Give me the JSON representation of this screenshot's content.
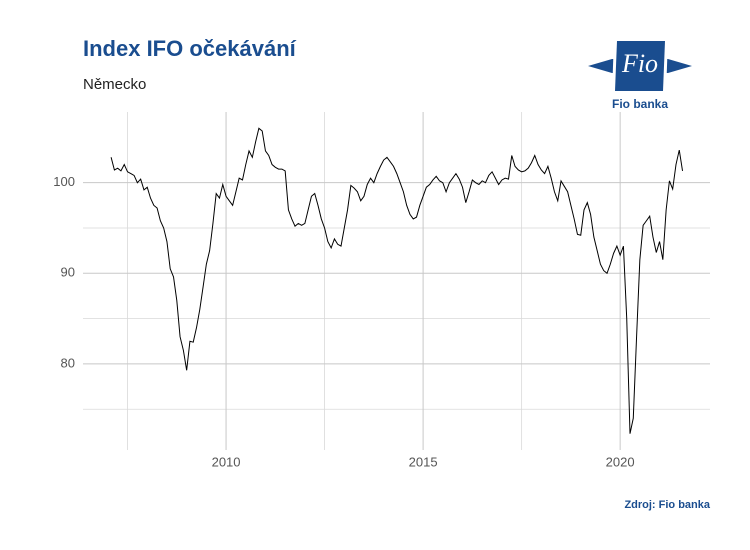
{
  "chart_data": {
    "type": "line",
    "title": "Index IFO očekávání",
    "subtitle": "Německo",
    "source": "Zdroj: Fio banka",
    "logo": {
      "text": "Fio",
      "caption": "Fio banka"
    },
    "xlim": [
      2006.37,
      2022.28
    ],
    "ylim": [
      70.5,
      107.8
    ],
    "xticks": [
      2010,
      2015,
      2020
    ],
    "yticks": [
      80,
      90,
      100
    ],
    "x_minor_ticks": [
      2007.5,
      2012.5,
      2017.5
    ],
    "y_minor_ticks": [
      75,
      85,
      95
    ],
    "grid": true,
    "x": [
      2007.083,
      2007.167,
      2007.25,
      2007.333,
      2007.417,
      2007.5,
      2007.583,
      2007.667,
      2007.75,
      2007.833,
      2007.917,
      2008,
      2008.083,
      2008.167,
      2008.25,
      2008.333,
      2008.417,
      2008.5,
      2008.583,
      2008.667,
      2008.75,
      2008.833,
      2008.917,
      2009,
      2009.083,
      2009.167,
      2009.25,
      2009.333,
      2009.417,
      2009.5,
      2009.583,
      2009.667,
      2009.75,
      2009.833,
      2009.917,
      2010,
      2010.083,
      2010.167,
      2010.25,
      2010.333,
      2010.417,
      2010.5,
      2010.583,
      2010.667,
      2010.75,
      2010.833,
      2010.917,
      2011,
      2011.083,
      2011.167,
      2011.25,
      2011.333,
      2011.417,
      2011.5,
      2011.583,
      2011.667,
      2011.75,
      2011.833,
      2011.917,
      2012,
      2012.083,
      2012.167,
      2012.25,
      2012.333,
      2012.417,
      2012.5,
      2012.583,
      2012.667,
      2012.75,
      2012.833,
      2012.917,
      2013,
      2013.083,
      2013.167,
      2013.25,
      2013.333,
      2013.417,
      2013.5,
      2013.583,
      2013.667,
      2013.75,
      2013.833,
      2013.917,
      2014,
      2014.083,
      2014.167,
      2014.25,
      2014.333,
      2014.417,
      2014.5,
      2014.583,
      2014.667,
      2014.75,
      2014.833,
      2014.917,
      2015,
      2015.083,
      2015.167,
      2015.25,
      2015.333,
      2015.417,
      2015.5,
      2015.583,
      2015.667,
      2015.75,
      2015.833,
      2015.917,
      2016,
      2016.083,
      2016.167,
      2016.25,
      2016.333,
      2016.417,
      2016.5,
      2016.583,
      2016.667,
      2016.75,
      2016.833,
      2016.917,
      2017,
      2017.083,
      2017.167,
      2017.25,
      2017.333,
      2017.417,
      2017.5,
      2017.583,
      2017.667,
      2017.75,
      2017.833,
      2017.917,
      2018,
      2018.083,
      2018.167,
      2018.25,
      2018.333,
      2018.417,
      2018.5,
      2018.583,
      2018.667,
      2018.75,
      2018.833,
      2018.917,
      2019,
      2019.083,
      2019.167,
      2019.25,
      2019.333,
      2019.417,
      2019.5,
      2019.583,
      2019.667,
      2019.75,
      2019.833,
      2019.917,
      2020,
      2020.083,
      2020.167,
      2020.25,
      2020.333,
      2020.417,
      2020.5,
      2020.583,
      2020.667,
      2020.75,
      2020.833,
      2020.917,
      2021,
      2021.083,
      2021.167,
      2021.25,
      2021.333,
      2021.417,
      2021.5,
      2021.583
    ],
    "series": [
      {
        "color": "#000000",
        "values": [
          102.8,
          101.4,
          101.6,
          101.3,
          102.0,
          101.2,
          101.0,
          100.8,
          100.0,
          100.4,
          99.2,
          99.5,
          98.3,
          97.5,
          97.2,
          95.8,
          95.0,
          93.5,
          90.5,
          89.6,
          87.0,
          83.0,
          81.5,
          79.3,
          82.5,
          82.4,
          84.0,
          86.0,
          88.5,
          91.0,
          92.5,
          95.5,
          98.8,
          98.3,
          99.8,
          98.5,
          98.0,
          97.5,
          99.0,
          100.5,
          100.3,
          102.0,
          103.5,
          102.8,
          104.5,
          106.0,
          105.7,
          103.5,
          103.0,
          102.0,
          101.7,
          101.5,
          101.5,
          101.3,
          97.0,
          96.0,
          95.2,
          95.5,
          95.3,
          95.5,
          97.0,
          98.5,
          98.8,
          97.5,
          96.0,
          95.0,
          93.5,
          92.8,
          93.8,
          93.2,
          93.0,
          95.0,
          97.0,
          99.7,
          99.4,
          99.0,
          98.0,
          98.5,
          99.8,
          100.5,
          100.0,
          101.0,
          101.8,
          102.5,
          102.8,
          102.3,
          101.8,
          101.0,
          100.0,
          99.0,
          97.5,
          96.5,
          96.0,
          96.2,
          97.5,
          98.5,
          99.5,
          99.8,
          100.3,
          100.7,
          100.2,
          100.0,
          99.0,
          100.0,
          100.5,
          101.0,
          100.4,
          99.5,
          97.8,
          99.0,
          100.3,
          100.0,
          99.8,
          100.2,
          100.0,
          100.8,
          101.2,
          100.5,
          99.8,
          100.3,
          100.5,
          100.4,
          103.0,
          101.8,
          101.4,
          101.2,
          101.3,
          101.6,
          102.2,
          103.0,
          102.0,
          101.4,
          101.0,
          101.8,
          100.5,
          99.0,
          98.0,
          100.2,
          99.6,
          99.0,
          97.5,
          96.0,
          94.3,
          94.2,
          97.0,
          97.8,
          96.5,
          94.0,
          92.5,
          91.0,
          90.3,
          90.0,
          91.0,
          92.2,
          93.0,
          92.0,
          93.0,
          85.0,
          72.3,
          74.0,
          83.0,
          91.5,
          95.3,
          95.8,
          96.3,
          94.0,
          92.3,
          93.5,
          91.5,
          97.0,
          100.2,
          99.3,
          102.0,
          103.6,
          101.3
        ]
      }
    ]
  }
}
